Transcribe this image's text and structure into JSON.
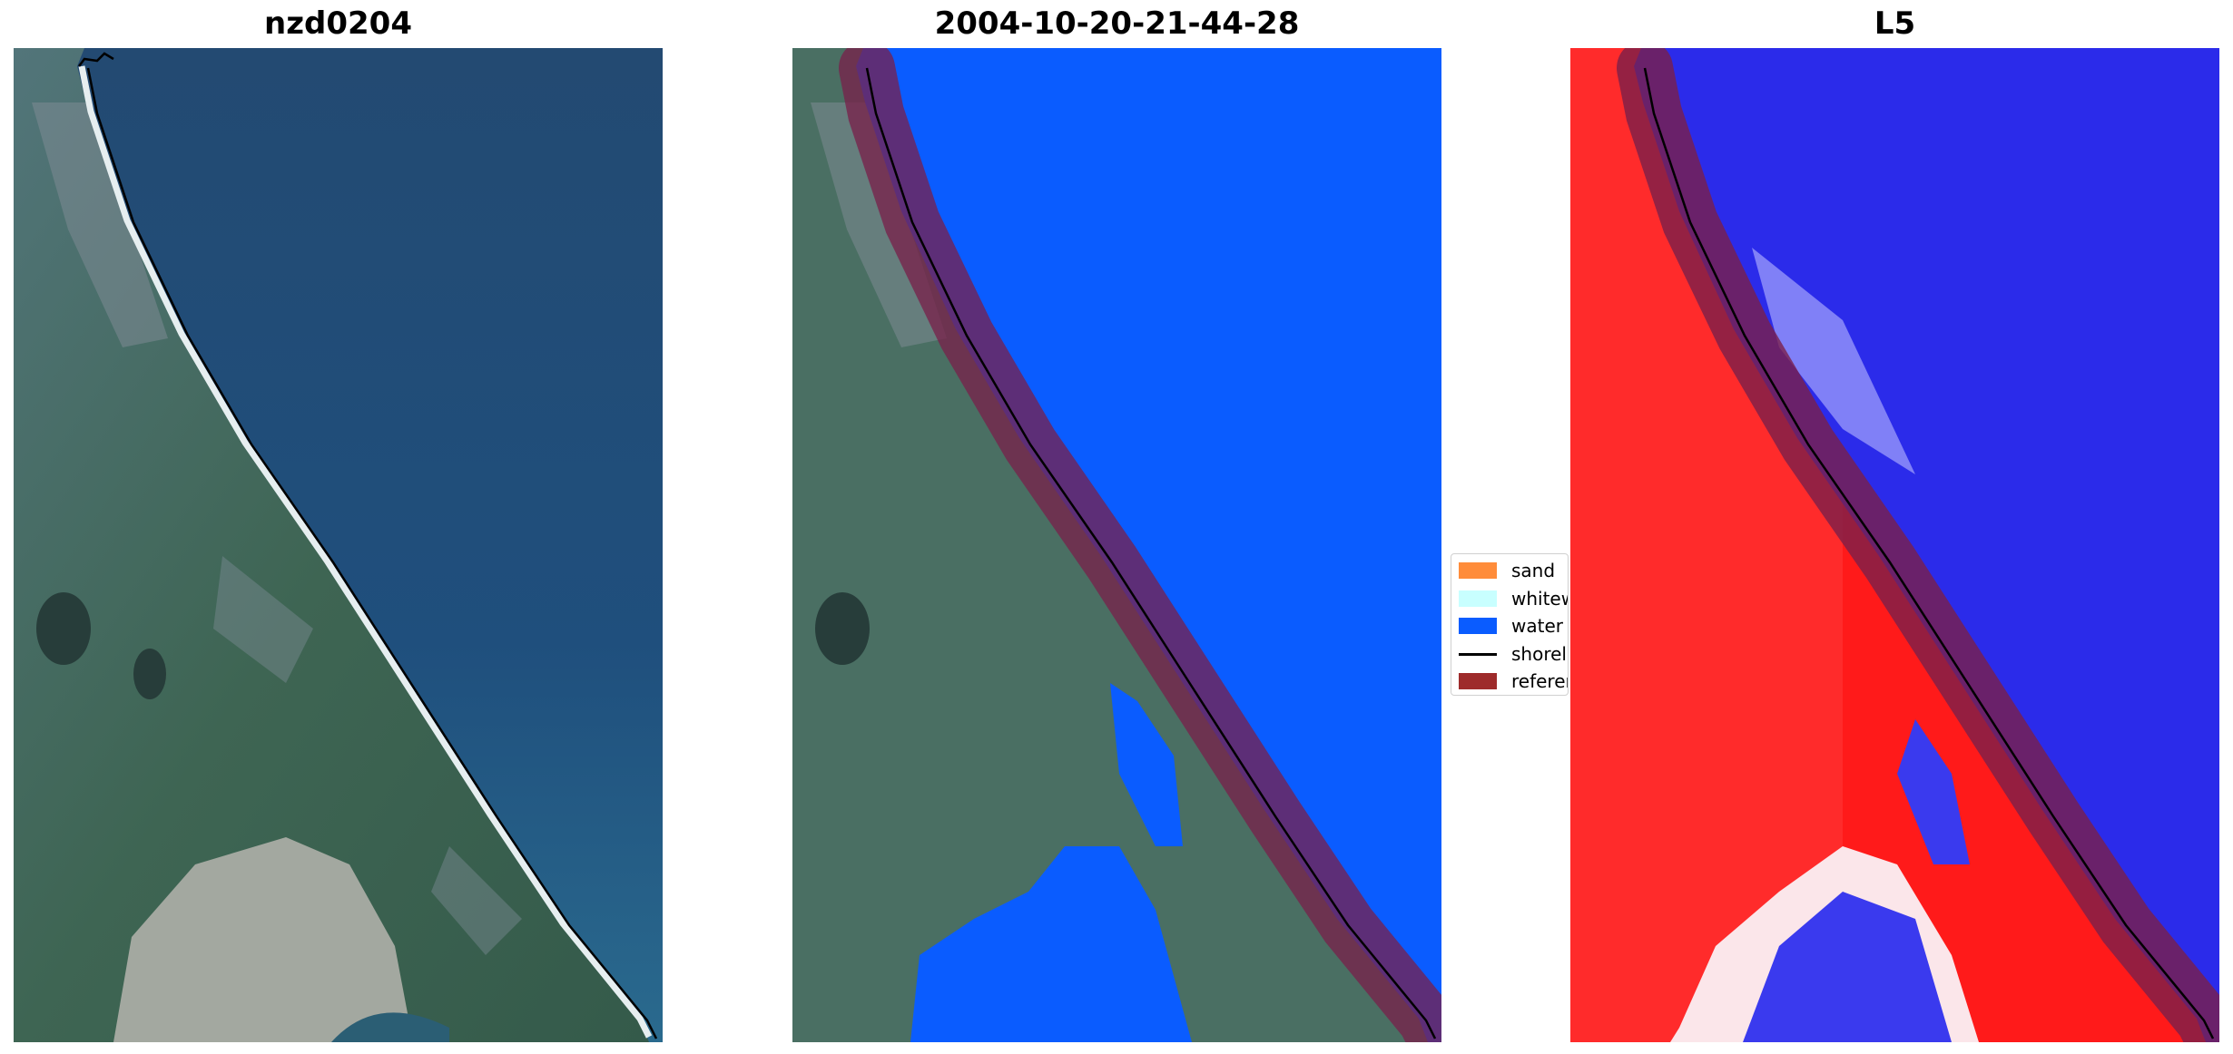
{
  "panels": [
    {
      "title": "nzd0204"
    },
    {
      "title": "2004-10-20-21-44-28"
    },
    {
      "title": "L5"
    }
  ],
  "legend": {
    "items": [
      {
        "label": "sand",
        "color": "#ff8c3a",
        "kind": "patch"
      },
      {
        "label": "whitewater",
        "color": "#c8ffff",
        "kind": "patch"
      },
      {
        "label": "water",
        "color": "#0a5cff",
        "kind": "patch"
      },
      {
        "label": "shoreline",
        "color": "#000000",
        "kind": "line"
      },
      {
        "label": "reference shoreline buffer",
        "color": "#9e2b2b",
        "kind": "patch"
      }
    ]
  },
  "colors": {
    "ocean": "#1f4f7d",
    "land": "#3f6a57",
    "water_class": "#0a5cff",
    "buffer": "#7a1f4a",
    "index_positive": "#ff1a1a",
    "index_negative": "#2323e6"
  }
}
